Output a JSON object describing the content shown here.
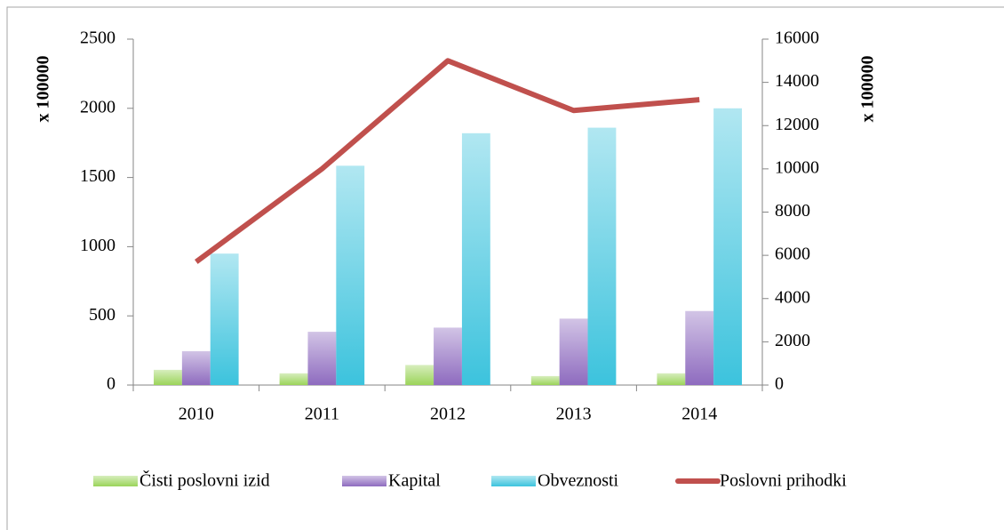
{
  "chart_data": {
    "type": "bar",
    "categories": [
      "2010",
      "2011",
      "2012",
      "2013",
      "2014"
    ],
    "series": [
      {
        "name": "Čisti poslovni izid",
        "type": "bar",
        "color": "#9bd45a",
        "values": [
          110,
          85,
          145,
          65,
          85
        ]
      },
      {
        "name": "Kapital",
        "type": "bar",
        "color": "#8e6bbf",
        "values": [
          245,
          385,
          415,
          480,
          535
        ]
      },
      {
        "name": "Obveznosti",
        "type": "bar",
        "color": "#3cc3dd",
        "values": [
          950,
          1585,
          1820,
          1860,
          2000
        ]
      },
      {
        "name": "Poslovni prihodki",
        "type": "line",
        "axis": "y2",
        "color": "#c0504d",
        "values": [
          5700,
          10000,
          15000,
          12700,
          13200
        ]
      }
    ],
    "ylabel": "x 100000",
    "y2label": "x 100000",
    "ylim": [
      0,
      2500
    ],
    "yticks": [
      0,
      500,
      1000,
      1500,
      2000,
      2500
    ],
    "y2lim": [
      0,
      16000
    ],
    "y2ticks": [
      0,
      2000,
      4000,
      6000,
      8000,
      10000,
      12000,
      14000,
      16000
    ],
    "legend": "bottom"
  }
}
